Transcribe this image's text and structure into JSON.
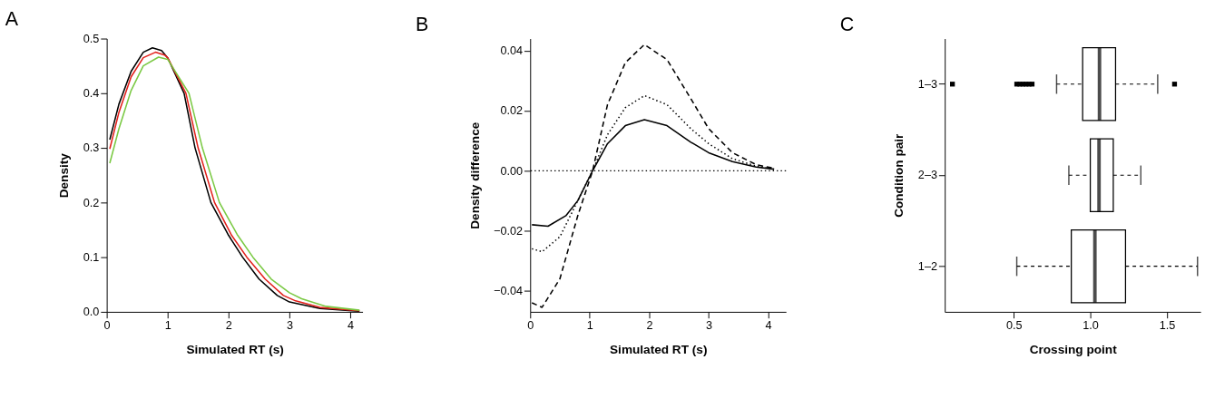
{
  "chart_data": [
    {
      "type": "line",
      "title": "A",
      "xlabel": "Simulated RT (s)",
      "ylabel": "Density",
      "xlim": [
        0,
        4.2
      ],
      "ylim": [
        0,
        0.5
      ],
      "xticks": [
        0,
        1,
        2,
        3,
        4
      ],
      "yticks": [
        {
          "value": 0,
          "label": "0.0"
        },
        0.1,
        0.2,
        0.3,
        0.4,
        0.5
      ],
      "grid": false,
      "line_style": "solid",
      "series": [
        {
          "color": "#000000",
          "x": [
            0.05,
            0.2,
            0.4,
            0.6,
            0.75,
            0.9,
            1.0,
            1.27,
            1.45,
            1.71,
            2.0,
            2.23,
            2.5,
            2.8,
            3.0,
            3.5,
            4.15
          ],
          "values": [
            0.315,
            0.38,
            0.44,
            0.475,
            0.483,
            0.478,
            0.465,
            0.4,
            0.3,
            0.2,
            0.14,
            0.1,
            0.06,
            0.03,
            0.018,
            0.006,
            0.001
          ]
        },
        {
          "color": "#e3201b",
          "x": [
            0.05,
            0.2,
            0.4,
            0.6,
            0.8,
            0.95,
            1.0,
            1.3,
            1.5,
            1.77,
            2.05,
            2.3,
            2.6,
            2.9,
            3.1,
            3.5,
            4.15
          ],
          "values": [
            0.298,
            0.365,
            0.43,
            0.465,
            0.475,
            0.47,
            0.465,
            0.4,
            0.3,
            0.2,
            0.14,
            0.1,
            0.06,
            0.03,
            0.02,
            0.008,
            0.002
          ]
        },
        {
          "color": "#7ac943",
          "x": [
            0.05,
            0.2,
            0.4,
            0.6,
            0.85,
            1.0,
            1.35,
            1.57,
            1.85,
            2.15,
            2.4,
            2.7,
            3.0,
            3.2,
            3.6,
            4.15
          ],
          "values": [
            0.272,
            0.335,
            0.405,
            0.45,
            0.466,
            0.462,
            0.4,
            0.3,
            0.2,
            0.14,
            0.1,
            0.06,
            0.035,
            0.024,
            0.01,
            0.003
          ]
        }
      ]
    },
    {
      "type": "line",
      "title": "B",
      "xlabel": "Simulated RT (s)",
      "ylabel": "Density difference",
      "xlim": [
        0,
        4.3
      ],
      "ylim": [
        -0.047,
        0.044
      ],
      "xticks": [
        0,
        1,
        2,
        3,
        4
      ],
      "yticks": [
        -0.04,
        -0.02,
        {
          "value": 0,
          "label": "0.00"
        },
        0.02,
        0.04
      ],
      "grid": false,
      "ref_lines": [
        {
          "axis": "y",
          "value": 0,
          "line_style": "dotted",
          "color": "#000000"
        }
      ],
      "series": [
        {
          "color": "#000000",
          "line_style": "solid",
          "x": [
            0.03,
            0.3,
            0.6,
            0.8,
            1.05,
            1.3,
            1.6,
            1.92,
            2.3,
            2.7,
            3.0,
            3.4,
            3.8,
            4.1
          ],
          "values": [
            -0.018,
            -0.0185,
            -0.015,
            -0.01,
            0,
            0.009,
            0.015,
            0.017,
            0.015,
            0.0095,
            0.006,
            0.003,
            0.0012,
            0.0005
          ]
        },
        {
          "color": "#000000",
          "line_style": "dotted",
          "x": [
            0.03,
            0.2,
            0.5,
            0.8,
            1.05,
            1.3,
            1.6,
            1.92,
            2.3,
            2.7,
            3.0,
            3.4,
            3.8,
            4.1
          ],
          "values": [
            -0.026,
            -0.027,
            -0.022,
            -0.01,
            0,
            0.012,
            0.021,
            0.025,
            0.022,
            0.014,
            0.009,
            0.004,
            0.0015,
            0.0005
          ]
        },
        {
          "color": "#000000",
          "line_style": "dashed",
          "x": [
            0.03,
            0.2,
            0.5,
            0.8,
            1.05,
            1.3,
            1.6,
            1.92,
            2.3,
            2.7,
            3.0,
            3.4,
            3.8,
            4.1
          ],
          "values": [
            -0.044,
            -0.0455,
            -0.036,
            -0.015,
            0,
            0.022,
            0.036,
            0.042,
            0.037,
            0.024,
            0.014,
            0.006,
            0.002,
            0.0008
          ]
        }
      ]
    },
    {
      "type": "box",
      "title": "C",
      "orientation": "horizontal",
      "xlabel": "Crossing point",
      "ylabel": "Condition pair",
      "categories": [
        "1–3",
        "2–3",
        "1–2"
      ],
      "xlim": [
        0.05,
        1.72
      ],
      "xticks": [
        0.5,
        {
          "value": 1,
          "label": "1.0"
        },
        1.5
      ],
      "grid": false,
      "boxes": [
        {
          "low": 0.78,
          "q1": 0.95,
          "median": 1.06,
          "q3": 1.165,
          "high": 1.44,
          "outliers": [
            0.1,
            0.52,
            0.54,
            0.56,
            0.58,
            0.6,
            0.62,
            1.55
          ]
        },
        {
          "low": 0.86,
          "q1": 1.0,
          "median": 1.057,
          "q3": 1.15,
          "high": 1.33
        },
        {
          "low": 0.52,
          "q1": 0.876,
          "median": 1.03,
          "q3": 1.23,
          "high": 1.7
        }
      ]
    }
  ]
}
